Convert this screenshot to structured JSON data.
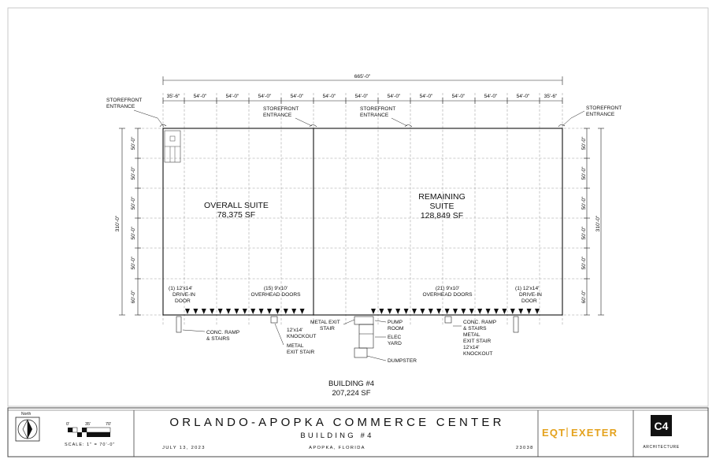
{
  "plan": {
    "overall_dimension": "665'-0\"",
    "bay_dimensions": [
      "35'-6\"",
      "54'-0\"",
      "54'-0\"",
      "54'-0\"",
      "54'-0\"",
      "54'-0\"",
      "54'-0\"",
      "54'-0\"",
      "54'-0\"",
      "54'-0\"",
      "54'-0\"",
      "54'-0\"",
      "35'-6\""
    ],
    "side_total": "310'-0\"",
    "left_rows": [
      "50'-0\"",
      "50'-0\"",
      "50'-0\"",
      "50'-0\"",
      "50'-0\"",
      "60'-0\""
    ],
    "right_rows": [
      "50'-0\"",
      "50'-0\"",
      "50'-0\"",
      "50'-0\"",
      "50'-0\"",
      "60'-0\""
    ],
    "storefront_left": [
      "STOREFRONT",
      "ENTRANCE"
    ],
    "storefront_mid1": [
      "STOREFRONT",
      "ENTRANCE"
    ],
    "storefront_mid2": [
      "STOREFRONT",
      "ENTRANCE"
    ],
    "storefront_right": [
      "STOREFRONT",
      "ENTRANCE"
    ],
    "suite_left": {
      "name": "OVERALL SUITE",
      "area": "78,375 SF"
    },
    "suite_right": {
      "name_line1": "REMAINING",
      "name_line2": "SUITE",
      "area": "128,849 SF"
    },
    "drive_in_left": [
      "(1) 12'x14'",
      "DRIVE-IN",
      "DOOR"
    ],
    "overhead_left": [
      "(15) 9'x10'",
      "OVERHEAD DOORS"
    ],
    "overhead_right": [
      "(21) 9'x10'",
      "OVERHEAD DOORS"
    ],
    "drive_in_right": [
      "(1) 12'x14'",
      "DRIVE-IN",
      "DOOR"
    ],
    "ramp_left": [
      "CONC. RAMP",
      "& STAIRS"
    ],
    "knockout_left": [
      "12'x14'",
      "KNOCKOUT"
    ],
    "exit_left": [
      "METAL",
      "EXIT STAIR"
    ],
    "exit_mid": [
      "METAL EXIT",
      "STAIR"
    ],
    "pump_room": [
      "PUMP",
      "ROOM"
    ],
    "elec_yard": [
      "ELEC",
      "YARD"
    ],
    "dumpster": "DUMPSTER",
    "ramp_right": [
      "CONC. RAMP",
      "& STAIRS"
    ],
    "exit_right": [
      "METAL",
      "EXIT STAIR"
    ],
    "knockout_right": [
      "12'x14'",
      "KNOCKOUT"
    ]
  },
  "building": {
    "name": "BUILDING #4",
    "area": "207,224 SF"
  },
  "title_block": {
    "north_label": "North",
    "scale_marks": [
      "0'",
      "35'",
      "70'"
    ],
    "scale_text": "SCALE: 1\" = 70'-0\"",
    "project": "ORLANDO-APOPKA COMMERCE CENTER",
    "subtitle": "BUILDING #4",
    "date": "JULY 13, 2023",
    "location": "APOPKA, FLORIDA",
    "job_number": "23038",
    "brand_left": "EQT",
    "brand_right": "EXETER",
    "firm_mark": "C4",
    "firm_label": "ARCHITECTURE"
  }
}
